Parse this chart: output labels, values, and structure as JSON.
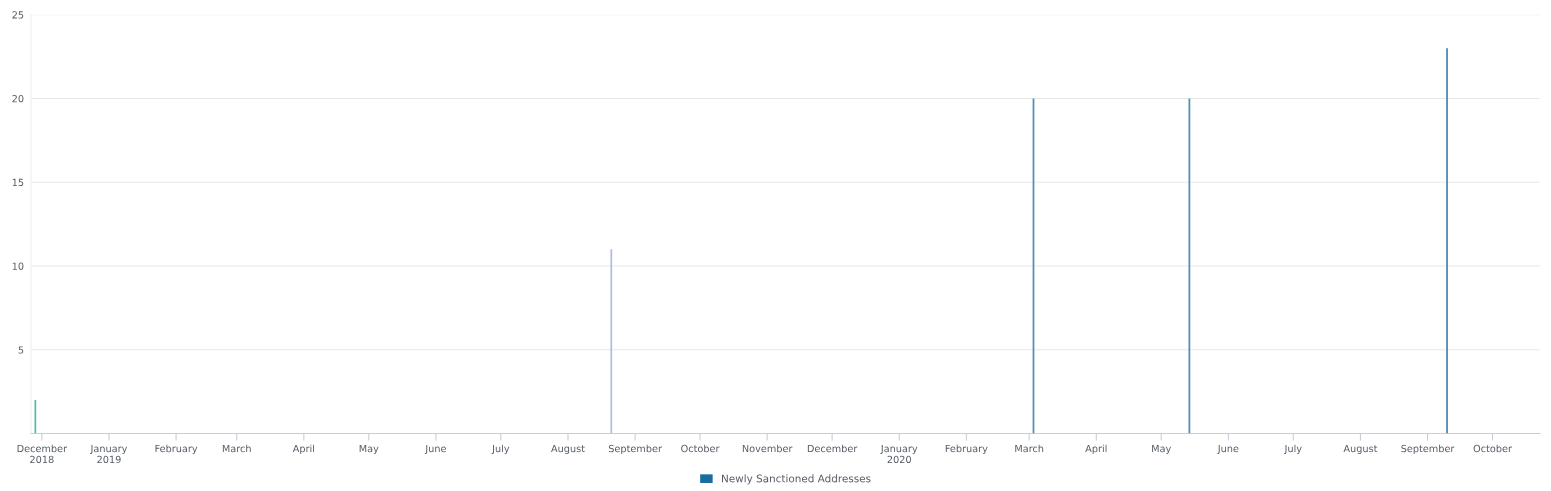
{
  "chart_data": {
    "type": "bar",
    "x": [
      "2018-11-28",
      "2019-08-21",
      "2020-03-03",
      "2020-05-14",
      "2020-09-10"
    ],
    "series": [
      {
        "name": "Newly Sanctioned Addresses",
        "color": "#1a6e9e",
        "values": [
          2,
          11,
          20,
          20,
          23
        ],
        "colors": [
          "#5ab8b0",
          "#a8c0dc",
          "#4a90bc",
          "#4a90bc",
          "#4a84b0"
        ]
      }
    ],
    "xlim": [
      "2018-11-26",
      "2020-10-23"
    ],
    "xticks": [
      {
        "value": "2018-12-01",
        "label": "December\n2018"
      },
      {
        "value": "2019-01-01",
        "label": "January\n2019"
      },
      {
        "value": "2019-02-01",
        "label": "February"
      },
      {
        "value": "2019-03-01",
        "label": "March"
      },
      {
        "value": "2019-04-01",
        "label": "April"
      },
      {
        "value": "2019-05-01",
        "label": "May"
      },
      {
        "value": "2019-06-01",
        "label": "June"
      },
      {
        "value": "2019-07-01",
        "label": "July"
      },
      {
        "value": "2019-08-01",
        "label": "August"
      },
      {
        "value": "2019-09-01",
        "label": "September"
      },
      {
        "value": "2019-10-01",
        "label": "October"
      },
      {
        "value": "2019-11-01",
        "label": "November"
      },
      {
        "value": "2019-12-01",
        "label": "December"
      },
      {
        "value": "2020-01-01",
        "label": "January\n2020"
      },
      {
        "value": "2020-02-01",
        "label": "February"
      },
      {
        "value": "2020-03-01",
        "label": "March"
      },
      {
        "value": "2020-04-01",
        "label": "April"
      },
      {
        "value": "2020-05-01",
        "label": "May"
      },
      {
        "value": "2020-06-01",
        "label": "June"
      },
      {
        "value": "2020-07-01",
        "label": "July"
      },
      {
        "value": "2020-08-01",
        "label": "August"
      },
      {
        "value": "2020-09-01",
        "label": "September"
      },
      {
        "value": "2020-10-01",
        "label": "October"
      }
    ],
    "ylim": [
      0,
      25
    ],
    "yticks": [
      5,
      10,
      15,
      20,
      25
    ],
    "grid": "y",
    "legend": "bottom"
  }
}
